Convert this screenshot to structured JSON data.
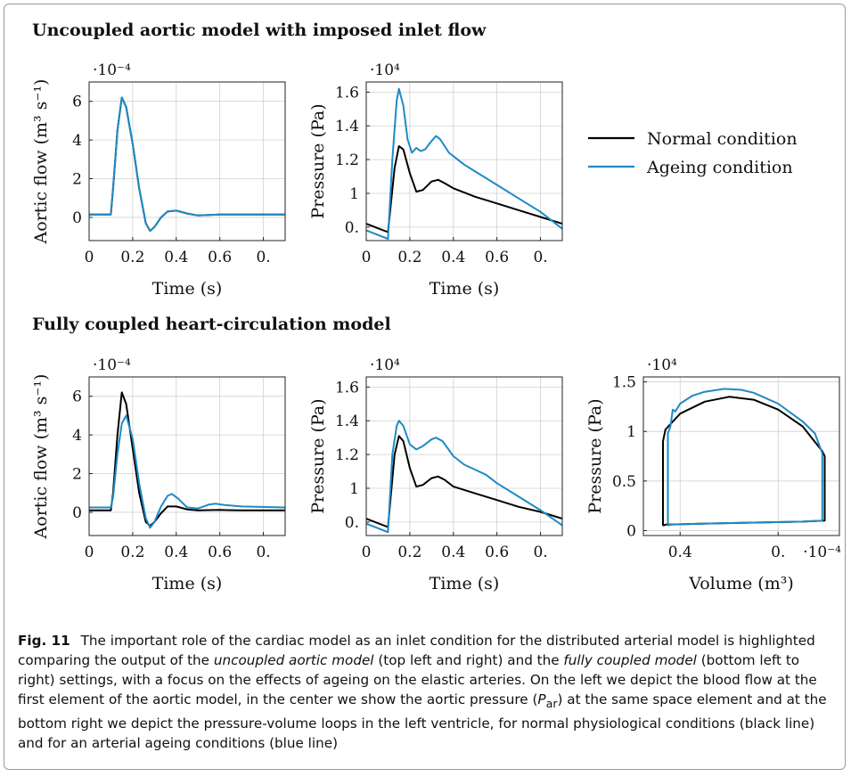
{
  "sections": {
    "top": "Uncoupled aortic model with imposed inlet flow",
    "bottom": "Fully coupled heart-circulation model"
  },
  "legend": [
    {
      "label": "Normal condition",
      "color": "#000000"
    },
    {
      "label": "Ageing condition",
      "color": "#1f8ac4"
    }
  ],
  "caption": {
    "label": "Fig. 11",
    "parts": [
      "The important role of the cardiac model as an inlet condition for the distributed arterial model is highlighted comparing the output of the ",
      "uncoupled aortic model",
      " (top left and right) and the ",
      "fully coupled model",
      " (bottom left to right) settings, with a focus on the effects of ageing on the elastic arteries. On the left we depict the blood flow at the first element of the aortic model, in the center we show the aortic pressure (",
      "P",
      "ar",
      ") at the same space element and at the bottom right we depict the pressure-volume loops in the left ventricle, for normal physiological conditions (black line) and for an arterial ageing conditions (blue line)"
    ]
  },
  "chart_data": [
    {
      "id": "flow-uncoupled",
      "type": "line",
      "xlabel": "Time (s)",
      "ylabel": "Aortic flow (m³ s⁻¹)",
      "scale": "·10⁻⁴",
      "xlim": [
        0,
        0.9
      ],
      "ylim": [
        -1.2,
        7.0
      ],
      "xticks": [
        0,
        0.2,
        0.4,
        0.6,
        0.8
      ],
      "xticklabels": [
        "0",
        "0.2",
        "0.4",
        "0.6",
        "0."
      ],
      "yticks": [
        0,
        2,
        4,
        6
      ],
      "yticklabels": [
        "0",
        "2",
        "4",
        "6"
      ],
      "series": [
        {
          "name": "Normal condition",
          "color": "#000000",
          "points": [
            [
              0,
              0.15
            ],
            [
              0.1,
              0.15
            ],
            [
              0.11,
              1.5
            ],
            [
              0.13,
              4.5
            ],
            [
              0.15,
              6.2
            ],
            [
              0.17,
              5.7
            ],
            [
              0.2,
              3.8
            ],
            [
              0.23,
              1.5
            ],
            [
              0.26,
              -0.3
            ],
            [
              0.28,
              -0.7
            ],
            [
              0.3,
              -0.5
            ],
            [
              0.33,
              0.0
            ],
            [
              0.36,
              0.3
            ],
            [
              0.4,
              0.35
            ],
            [
              0.45,
              0.2
            ],
            [
              0.5,
              0.1
            ],
            [
              0.6,
              0.15
            ],
            [
              0.7,
              0.15
            ],
            [
              0.9,
              0.15
            ]
          ]
        },
        {
          "name": "Ageing condition",
          "color": "#1f8ac4",
          "points": [
            [
              0,
              0.15
            ],
            [
              0.1,
              0.15
            ],
            [
              0.11,
              1.5
            ],
            [
              0.13,
              4.5
            ],
            [
              0.15,
              6.2
            ],
            [
              0.17,
              5.7
            ],
            [
              0.2,
              3.8
            ],
            [
              0.23,
              1.5
            ],
            [
              0.26,
              -0.3
            ],
            [
              0.28,
              -0.7
            ],
            [
              0.3,
              -0.5
            ],
            [
              0.33,
              0.0
            ],
            [
              0.36,
              0.3
            ],
            [
              0.4,
              0.35
            ],
            [
              0.45,
              0.2
            ],
            [
              0.5,
              0.1
            ],
            [
              0.6,
              0.15
            ],
            [
              0.7,
              0.15
            ],
            [
              0.9,
              0.15
            ]
          ]
        }
      ]
    },
    {
      "id": "pressure-uncoupled",
      "type": "line",
      "xlabel": "Time (s)",
      "ylabel": "Pressure (Pa)",
      "scale": "·10⁴",
      "xlim": [
        0,
        0.9
      ],
      "ylim": [
        0.72,
        1.66
      ],
      "xticks": [
        0,
        0.2,
        0.4,
        0.6,
        0.8
      ],
      "xticklabels": [
        "0",
        "0.2",
        "0.4",
        "0.6",
        "0."
      ],
      "yticks": [
        0.8,
        1.0,
        1.2,
        1.4,
        1.6
      ],
      "yticklabels": [
        "0.",
        "1",
        "1.2",
        "1.4",
        "1.6"
      ],
      "series": [
        {
          "name": "Normal condition",
          "color": "#000000",
          "points": [
            [
              0,
              0.82
            ],
            [
              0.1,
              0.77
            ],
            [
              0.13,
              1.15
            ],
            [
              0.15,
              1.28
            ],
            [
              0.17,
              1.26
            ],
            [
              0.2,
              1.12
            ],
            [
              0.23,
              1.01
            ],
            [
              0.26,
              1.02
            ],
            [
              0.3,
              1.07
            ],
            [
              0.33,
              1.08
            ],
            [
              0.36,
              1.06
            ],
            [
              0.4,
              1.03
            ],
            [
              0.5,
              0.98
            ],
            [
              0.6,
              0.94
            ],
            [
              0.7,
              0.9
            ],
            [
              0.8,
              0.86
            ],
            [
              0.9,
              0.82
            ]
          ]
        },
        {
          "name": "Ageing condition",
          "color": "#1f8ac4",
          "points": [
            [
              0,
              0.78
            ],
            [
              0.1,
              0.73
            ],
            [
              0.12,
              1.2
            ],
            [
              0.14,
              1.55
            ],
            [
              0.15,
              1.62
            ],
            [
              0.17,
              1.52
            ],
            [
              0.19,
              1.32
            ],
            [
              0.21,
              1.24
            ],
            [
              0.23,
              1.27
            ],
            [
              0.25,
              1.25
            ],
            [
              0.27,
              1.26
            ],
            [
              0.3,
              1.31
            ],
            [
              0.32,
              1.34
            ],
            [
              0.34,
              1.32
            ],
            [
              0.38,
              1.24
            ],
            [
              0.45,
              1.17
            ],
            [
              0.5,
              1.13
            ],
            [
              0.6,
              1.05
            ],
            [
              0.7,
              0.97
            ],
            [
              0.8,
              0.89
            ],
            [
              0.9,
              0.79
            ]
          ]
        }
      ]
    },
    {
      "id": "flow-coupled",
      "type": "line",
      "xlabel": "Time (s)",
      "ylabel": "Aortic flow (m³ s⁻¹)",
      "scale": "·10⁻⁴",
      "xlim": [
        0,
        0.9
      ],
      "ylim": [
        -1.2,
        7.0
      ],
      "xticks": [
        0,
        0.2,
        0.4,
        0.6,
        0.8
      ],
      "xticklabels": [
        "0",
        "0.2",
        "0.4",
        "0.6",
        "0."
      ],
      "yticks": [
        0,
        2,
        4,
        6
      ],
      "yticklabels": [
        "0",
        "2",
        "4",
        "6"
      ],
      "series": [
        {
          "name": "Normal condition",
          "color": "#000000",
          "points": [
            [
              0,
              0.1
            ],
            [
              0.1,
              0.1
            ],
            [
              0.11,
              1.0
            ],
            [
              0.13,
              4.0
            ],
            [
              0.15,
              6.2
            ],
            [
              0.17,
              5.6
            ],
            [
              0.2,
              3.3
            ],
            [
              0.23,
              1.0
            ],
            [
              0.26,
              -0.5
            ],
            [
              0.28,
              -0.7
            ],
            [
              0.3,
              -0.5
            ],
            [
              0.33,
              -0.05
            ],
            [
              0.36,
              0.3
            ],
            [
              0.4,
              0.3
            ],
            [
              0.45,
              0.15
            ],
            [
              0.5,
              0.1
            ],
            [
              0.6,
              0.12
            ],
            [
              0.7,
              0.1
            ],
            [
              0.9,
              0.1
            ]
          ]
        },
        {
          "name": "Ageing condition",
          "color": "#1f8ac4",
          "points": [
            [
              0,
              0.25
            ],
            [
              0.1,
              0.25
            ],
            [
              0.11,
              0.8
            ],
            [
              0.13,
              3.0
            ],
            [
              0.15,
              4.6
            ],
            [
              0.17,
              5.0
            ],
            [
              0.2,
              3.8
            ],
            [
              0.23,
              1.5
            ],
            [
              0.26,
              -0.3
            ],
            [
              0.28,
              -0.8
            ],
            [
              0.3,
              -0.5
            ],
            [
              0.33,
              0.3
            ],
            [
              0.36,
              0.85
            ],
            [
              0.38,
              0.95
            ],
            [
              0.41,
              0.7
            ],
            [
              0.45,
              0.25
            ],
            [
              0.5,
              0.2
            ],
            [
              0.55,
              0.4
            ],
            [
              0.58,
              0.45
            ],
            [
              0.62,
              0.38
            ],
            [
              0.7,
              0.3
            ],
            [
              0.9,
              0.25
            ]
          ]
        }
      ]
    },
    {
      "id": "pressure-coupled",
      "type": "line",
      "xlabel": "Time (s)",
      "ylabel": "Pressure (Pa)",
      "scale": "·10⁴",
      "xlim": [
        0,
        0.9
      ],
      "ylim": [
        0.72,
        1.66
      ],
      "xticks": [
        0,
        0.2,
        0.4,
        0.6,
        0.8
      ],
      "xticklabels": [
        "0",
        "0.2",
        "0.4",
        "0.6",
        "0."
      ],
      "yticks": [
        0.8,
        1.0,
        1.2,
        1.4,
        1.6
      ],
      "yticklabels": [
        "0.",
        "1",
        "1.2",
        "1.4",
        "1.6"
      ],
      "series": [
        {
          "name": "Normal condition",
          "color": "#000000",
          "points": [
            [
              0,
              0.82
            ],
            [
              0.1,
              0.77
            ],
            [
              0.13,
              1.2
            ],
            [
              0.15,
              1.31
            ],
            [
              0.17,
              1.28
            ],
            [
              0.2,
              1.12
            ],
            [
              0.23,
              1.01
            ],
            [
              0.26,
              1.02
            ],
            [
              0.3,
              1.06
            ],
            [
              0.33,
              1.07
            ],
            [
              0.36,
              1.05
            ],
            [
              0.4,
              1.01
            ],
            [
              0.5,
              0.97
            ],
            [
              0.6,
              0.93
            ],
            [
              0.7,
              0.89
            ],
            [
              0.8,
              0.86
            ],
            [
              0.9,
              0.82
            ]
          ]
        },
        {
          "name": "Ageing condition",
          "color": "#1f8ac4",
          "points": [
            [
              0,
              0.79
            ],
            [
              0.1,
              0.74
            ],
            [
              0.12,
              1.2
            ],
            [
              0.14,
              1.37
            ],
            [
              0.15,
              1.4
            ],
            [
              0.17,
              1.37
            ],
            [
              0.2,
              1.26
            ],
            [
              0.23,
              1.23
            ],
            [
              0.26,
              1.25
            ],
            [
              0.3,
              1.29
            ],
            [
              0.32,
              1.3
            ],
            [
              0.35,
              1.28
            ],
            [
              0.4,
              1.19
            ],
            [
              0.45,
              1.14
            ],
            [
              0.5,
              1.11
            ],
            [
              0.55,
              1.08
            ],
            [
              0.6,
              1.03
            ],
            [
              0.7,
              0.95
            ],
            [
              0.8,
              0.87
            ],
            [
              0.9,
              0.78
            ]
          ]
        }
      ]
    },
    {
      "id": "pv-loop",
      "type": "line",
      "xlabel": "Volume (m³)",
      "ylabel": "Pressure (Pa)",
      "xscale": "·10⁻⁴",
      "scale": "·10⁴",
      "xlim": [
        0.25,
        1.05
      ],
      "ylim": [
        -0.05,
        1.55
      ],
      "xticks": [
        0.4,
        0.8
      ],
      "xticklabels": [
        "0.4",
        "0."
      ],
      "yticks": [
        0,
        0.5,
        1.0,
        1.5
      ],
      "yticklabels": [
        "0",
        "0.5",
        "1",
        "1.5"
      ],
      "series": [
        {
          "name": "Normal condition",
          "color": "#000000",
          "points": [
            [
              0.33,
              0.05
            ],
            [
              0.33,
              0.9
            ],
            [
              0.34,
              1.02
            ],
            [
              0.4,
              1.18
            ],
            [
              0.5,
              1.3
            ],
            [
              0.6,
              1.35
            ],
            [
              0.7,
              1.32
            ],
            [
              0.8,
              1.22
            ],
            [
              0.9,
              1.05
            ],
            [
              0.98,
              0.8
            ],
            [
              0.99,
              0.75
            ],
            [
              0.99,
              0.1
            ],
            [
              0.9,
              0.09
            ],
            [
              0.7,
              0.08
            ],
            [
              0.5,
              0.07
            ],
            [
              0.34,
              0.06
            ],
            [
              0.33,
              0.05
            ]
          ]
        },
        {
          "name": "Ageing condition",
          "color": "#1f8ac4",
          "points": [
            [
              0.35,
              0.05
            ],
            [
              0.35,
              0.98
            ],
            [
              0.36,
              1.05
            ],
            [
              0.37,
              1.22
            ],
            [
              0.38,
              1.2
            ],
            [
              0.4,
              1.28
            ],
            [
              0.45,
              1.36
            ],
            [
              0.5,
              1.4
            ],
            [
              0.58,
              1.43
            ],
            [
              0.65,
              1.42
            ],
            [
              0.7,
              1.39
            ],
            [
              0.8,
              1.28
            ],
            [
              0.9,
              1.1
            ],
            [
              0.95,
              0.98
            ],
            [
              0.98,
              0.78
            ],
            [
              0.98,
              0.1
            ],
            [
              0.9,
              0.09
            ],
            [
              0.7,
              0.08
            ],
            [
              0.5,
              0.07
            ],
            [
              0.36,
              0.06
            ],
            [
              0.35,
              0.05
            ]
          ]
        }
      ]
    }
  ]
}
